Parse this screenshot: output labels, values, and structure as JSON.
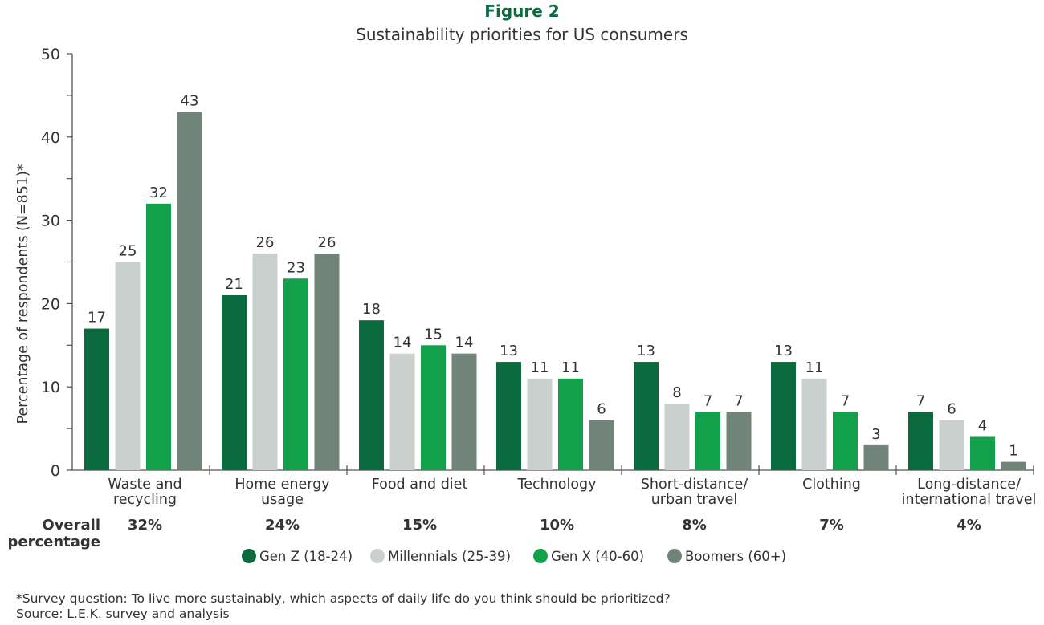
{
  "figure_label": "Figure 2",
  "chart_data": {
    "type": "bar",
    "title": "Sustainability priorities for US consumers",
    "ylabel": "Percentage of respondents (N=851)*",
    "xlabel": "",
    "ylim": [
      0,
      50
    ],
    "yticks": [
      0,
      10,
      20,
      30,
      40,
      50
    ],
    "grid": false,
    "legend_position": "bottom",
    "categories": [
      [
        "Waste and",
        "recycling"
      ],
      [
        "Home energy",
        "usage"
      ],
      [
        "Food and diet"
      ],
      [
        "Technology"
      ],
      [
        "Short-distance/",
        "urban travel"
      ],
      [
        "Clothing"
      ],
      [
        "Long-distance/",
        "international travel"
      ]
    ],
    "series": [
      {
        "name": "Gen Z (18-24)",
        "color": "#0b6b3e",
        "values": [
          17,
          21,
          18,
          13,
          13,
          13,
          7
        ]
      },
      {
        "name": "Millennials (25-39)",
        "color": "#c9d0cd",
        "values": [
          25,
          26,
          14,
          11,
          8,
          11,
          6
        ]
      },
      {
        "name": "Gen X (40-60)",
        "color": "#13a04a",
        "values": [
          32,
          23,
          15,
          11,
          7,
          7,
          4
        ]
      },
      {
        "name": "Boomers (60+)",
        "color": "#718479",
        "values": [
          43,
          26,
          14,
          6,
          7,
          3,
          1
        ]
      }
    ],
    "overall_label": [
      "Overall",
      "percentage"
    ],
    "overall_percentages": [
      "32%",
      "24%",
      "15%",
      "10%",
      "8%",
      "7%",
      "4%"
    ]
  },
  "footnote": "*Survey question: To live more sustainably, which aspects of daily life do you think should be prioritized?",
  "source": "Source: L.E.K. survey and analysis"
}
